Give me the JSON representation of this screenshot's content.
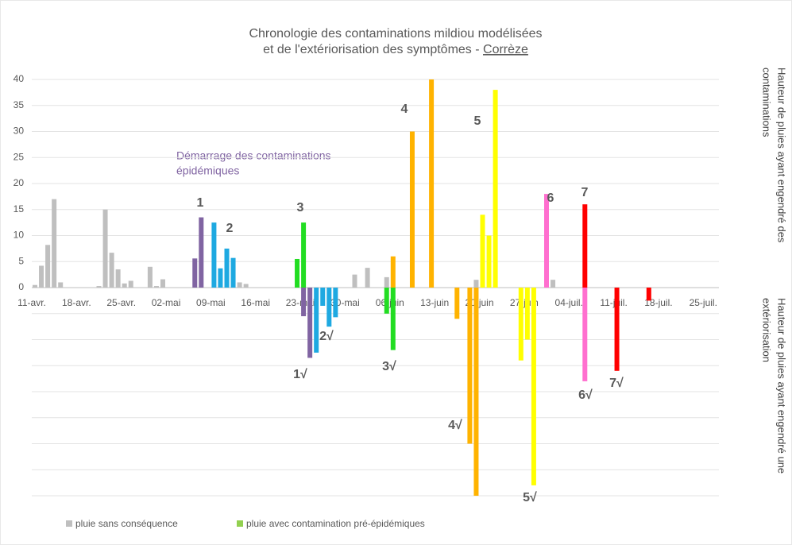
{
  "chart_data": {
    "type": "bar",
    "title": [
      "Chronologie des contaminations mildiou modélisées",
      "et de l'extériorisation des symptômes - "
    ],
    "title_place": "Corrèze",
    "y_title": [
      "Hauteur de pluies ayant engendré des",
      "contaminations"
    ],
    "y_title_lower": [
      "Hauteur de pluies ayant engendré une",
      "extériorisation"
    ],
    "annotation_start": [
      "Démarrage des contaminations",
      "épidémiques"
    ],
    "annotation_start_color": "#8064a2",
    "categories": [
      "11-avr.",
      null,
      null,
      null,
      null,
      null,
      null,
      "18-avr.",
      null,
      null,
      null,
      null,
      null,
      null,
      "25-avr.",
      null,
      null,
      null,
      null,
      null,
      null,
      "02-mai",
      null,
      null,
      null,
      null,
      null,
      null,
      "09-mai",
      null,
      null,
      null,
      null,
      null,
      null,
      "16-mai",
      null,
      null,
      null,
      null,
      null,
      null,
      "23-mai",
      null,
      null,
      null,
      null,
      null,
      null,
      "30-mai",
      null,
      null,
      null,
      null,
      null,
      null,
      "06-juin",
      null,
      null,
      null,
      null,
      null,
      null,
      "13-juin",
      null,
      null,
      null,
      null,
      null,
      null,
      "20-juin",
      null,
      null,
      null,
      null,
      null,
      null,
      "27-juin",
      null,
      null,
      null,
      null,
      null,
      null,
      "04-juil.",
      null,
      null,
      null,
      null,
      null,
      null,
      "11-juil.",
      null,
      null,
      null,
      null,
      null,
      null,
      "18-juil.",
      null,
      null,
      null,
      null,
      null,
      null,
      "25-juil."
    ],
    "series": [
      {
        "color": "#bfbfbf",
        "values": [
          0.5,
          4.2,
          8.2,
          17,
          1,
          null,
          null,
          null,
          null,
          null,
          0.3,
          15,
          6.7,
          3.5,
          0.8,
          1.3,
          null,
          null,
          4,
          0.3,
          1.6,
          null,
          null,
          null,
          null,
          null,
          null,
          null,
          null,
          null,
          null,
          null,
          1,
          0.7,
          null,
          null,
          null,
          null,
          null,
          null,
          null,
          null,
          null,
          null,
          null,
          null,
          null,
          null,
          null,
          null,
          2.5,
          null,
          3.8,
          null,
          null,
          2,
          null,
          null,
          null,
          null,
          null,
          null,
          null,
          null,
          null,
          null,
          null,
          null,
          null,
          1.5,
          null,
          null,
          null,
          null,
          null,
          null,
          null,
          null,
          null,
          null,
          null,
          1.5,
          null,
          null,
          null,
          null,
          null,
          null,
          null,
          null,
          null,
          null,
          null,
          null,
          null,
          null,
          null,
          null,
          null,
          null,
          null,
          null,
          null,
          null,
          null,
          null
        ]
      },
      {
        "color": "#8064a2",
        "values": [
          null,
          null,
          null,
          null,
          null,
          null,
          null,
          null,
          null,
          null,
          null,
          null,
          null,
          null,
          null,
          null,
          null,
          null,
          null,
          null,
          null,
          null,
          null,
          null,
          null,
          5.6,
          13.5,
          null,
          null,
          null,
          null,
          null,
          null,
          null,
          null,
          null,
          null,
          null,
          null,
          null,
          null,
          null,
          -5.5,
          -13.5,
          null,
          null,
          null,
          null,
          null,
          null,
          null,
          null,
          null,
          null,
          null,
          null,
          null,
          null,
          null,
          null,
          null,
          null,
          null,
          null,
          null,
          null,
          null,
          null,
          null,
          null,
          null,
          null,
          null,
          null,
          null,
          null,
          null,
          null,
          null,
          null,
          null,
          null,
          null,
          null,
          null,
          null,
          null,
          null,
          null,
          null,
          null,
          null,
          null,
          null,
          null,
          null,
          null,
          null,
          null,
          null,
          null,
          null,
          null,
          null,
          null,
          null
        ]
      },
      {
        "color": "#1ea9e1",
        "values": [
          null,
          null,
          null,
          null,
          null,
          null,
          null,
          null,
          null,
          null,
          null,
          null,
          null,
          null,
          null,
          null,
          null,
          null,
          null,
          null,
          null,
          null,
          null,
          null,
          null,
          null,
          null,
          null,
          12.5,
          3.7,
          7.5,
          5.7,
          null,
          null,
          null,
          null,
          null,
          null,
          null,
          null,
          null,
          null,
          null,
          null,
          -12.5,
          -3.5,
          -7.5,
          -5.7,
          null,
          null,
          null,
          null,
          null,
          null,
          null,
          null,
          null,
          null,
          null,
          null,
          null,
          null,
          null,
          null,
          null,
          null,
          null,
          null,
          null,
          null,
          null,
          null,
          null,
          null,
          null,
          null,
          null,
          null,
          null,
          null,
          null,
          null,
          null,
          null,
          null,
          null,
          null,
          null,
          null,
          null,
          null,
          null,
          null,
          null,
          null,
          null,
          null,
          null,
          null,
          null,
          null,
          null,
          null,
          null,
          null,
          null
        ]
      },
      {
        "color": "#22dd22",
        "values": [
          null,
          null,
          null,
          null,
          null,
          null,
          null,
          null,
          null,
          null,
          null,
          null,
          null,
          null,
          null,
          null,
          null,
          null,
          null,
          null,
          null,
          null,
          null,
          null,
          null,
          null,
          null,
          null,
          null,
          null,
          null,
          null,
          null,
          null,
          null,
          null,
          null,
          null,
          null,
          null,
          null,
          5.5,
          12.5,
          null,
          null,
          null,
          null,
          null,
          null,
          null,
          null,
          null,
          null,
          null,
          null,
          -5,
          -12,
          null,
          null,
          null,
          null,
          null,
          null,
          null,
          null,
          null,
          null,
          null,
          null,
          null,
          null,
          null,
          null,
          null,
          null,
          null,
          null,
          null,
          null,
          null,
          null,
          null,
          null,
          null,
          null,
          null,
          null,
          null,
          null,
          null,
          null,
          null,
          null,
          null,
          null,
          null,
          null,
          null,
          null,
          null,
          null,
          null,
          null,
          null,
          null,
          null
        ]
      },
      {
        "color": "#ffb300",
        "values": [
          null,
          null,
          null,
          null,
          null,
          null,
          null,
          null,
          null,
          null,
          null,
          null,
          null,
          null,
          null,
          null,
          null,
          null,
          null,
          null,
          null,
          null,
          null,
          null,
          null,
          null,
          null,
          null,
          null,
          null,
          null,
          null,
          null,
          null,
          null,
          null,
          null,
          null,
          null,
          null,
          null,
          null,
          null,
          null,
          null,
          null,
          null,
          null,
          null,
          null,
          null,
          null,
          null,
          null,
          null,
          null,
          6,
          null,
          null,
          30,
          null,
          null,
          40,
          null,
          null,
          null,
          -6,
          null,
          -30,
          -40,
          null,
          null,
          null,
          null,
          null,
          null,
          null,
          null,
          null,
          null,
          null,
          null,
          null,
          null,
          null,
          null,
          null,
          null,
          null,
          null,
          null,
          null,
          null,
          null,
          null,
          null,
          null,
          null,
          null,
          null,
          null,
          null,
          null,
          null,
          null,
          null
        ]
      },
      {
        "color": "#ffff00",
        "values": [
          null,
          null,
          null,
          null,
          null,
          null,
          null,
          null,
          null,
          null,
          null,
          null,
          null,
          null,
          null,
          null,
          null,
          null,
          null,
          null,
          null,
          null,
          null,
          null,
          null,
          null,
          null,
          null,
          null,
          null,
          null,
          null,
          null,
          null,
          null,
          null,
          null,
          null,
          null,
          null,
          null,
          null,
          null,
          null,
          null,
          null,
          null,
          null,
          null,
          null,
          null,
          null,
          null,
          null,
          null,
          null,
          null,
          null,
          null,
          null,
          null,
          null,
          null,
          null,
          null,
          null,
          null,
          null,
          null,
          null,
          14,
          10,
          38,
          null,
          null,
          null,
          -14,
          -10,
          -38,
          null,
          null,
          null,
          null,
          null,
          null,
          null,
          null,
          null,
          null,
          null,
          null,
          null,
          null,
          null,
          null,
          null,
          null,
          null,
          null,
          null,
          null,
          null,
          null,
          null,
          null,
          null
        ]
      },
      {
        "color": "#ff6fcf",
        "values": [
          null,
          null,
          null,
          null,
          null,
          null,
          null,
          null,
          null,
          null,
          null,
          null,
          null,
          null,
          null,
          null,
          null,
          null,
          null,
          null,
          null,
          null,
          null,
          null,
          null,
          null,
          null,
          null,
          null,
          null,
          null,
          null,
          null,
          null,
          null,
          null,
          null,
          null,
          null,
          null,
          null,
          null,
          null,
          null,
          null,
          null,
          null,
          null,
          null,
          null,
          null,
          null,
          null,
          null,
          null,
          null,
          null,
          null,
          null,
          null,
          null,
          null,
          null,
          null,
          null,
          null,
          null,
          null,
          null,
          null,
          null,
          null,
          null,
          null,
          null,
          null,
          null,
          null,
          null,
          null,
          18,
          null,
          null,
          null,
          null,
          null,
          -18,
          null,
          null,
          null,
          null,
          null,
          null,
          null,
          null,
          null,
          null,
          null,
          null,
          null,
          null,
          null,
          null,
          null,
          null,
          null
        ]
      },
      {
        "color": "#ff0000",
        "values": [
          null,
          null,
          null,
          null,
          null,
          null,
          null,
          null,
          null,
          null,
          null,
          null,
          null,
          null,
          null,
          null,
          null,
          null,
          null,
          null,
          null,
          null,
          null,
          null,
          null,
          null,
          null,
          null,
          null,
          null,
          null,
          null,
          null,
          null,
          null,
          null,
          null,
          null,
          null,
          null,
          null,
          null,
          null,
          null,
          null,
          null,
          null,
          null,
          null,
          null,
          null,
          null,
          null,
          null,
          null,
          null,
          null,
          null,
          null,
          null,
          null,
          null,
          null,
          null,
          null,
          null,
          null,
          null,
          null,
          null,
          null,
          null,
          null,
          null,
          null,
          null,
          null,
          null,
          null,
          null,
          null,
          null,
          null,
          null,
          null,
          null,
          16,
          null,
          null,
          null,
          null,
          -16,
          null,
          null,
          null,
          null,
          -2.5,
          null,
          null,
          null,
          null,
          null,
          null,
          null,
          null,
          null
        ]
      }
    ],
    "annotations": [
      {
        "text": "1",
        "color": "#8064a2"
      },
      {
        "text": "2",
        "color": "#1ea9e1"
      },
      {
        "text": "3",
        "color": "#22dd22"
      },
      {
        "text": "4",
        "color": "#f2d000"
      },
      {
        "text": "5",
        "color": "#f2f200"
      },
      {
        "text": "6",
        "color": "#ff6fcf"
      },
      {
        "text": "7",
        "color": "#ff0000"
      },
      {
        "text": "1√",
        "color": "#8064a2"
      },
      {
        "text": "2√",
        "color": "#1ea9e1"
      },
      {
        "text": "3√",
        "color": "#22dd22"
      },
      {
        "text": "4√",
        "color": "#f2c200"
      },
      {
        "text": "5√",
        "color": "#f2f200"
      },
      {
        "text": "6√",
        "color": "#ff6fcf"
      },
      {
        "text": "7√",
        "color": "#ff0000"
      }
    ],
    "legend": [
      {
        "name": "pluie sans conséquence",
        "color": "#bfbfbf"
      },
      {
        "name": "pluie avec contamination pré-épidémiques",
        "color": "#92d050"
      }
    ],
    "ylim": [
      -40,
      40
    ],
    "yticks": [
      0,
      5,
      10,
      15,
      20,
      25,
      30,
      35,
      40
    ],
    "y_gridlines_lower": [
      -5,
      -10,
      -15,
      -20,
      -25,
      -30,
      -35,
      -40
    ],
    "grid": true
  }
}
